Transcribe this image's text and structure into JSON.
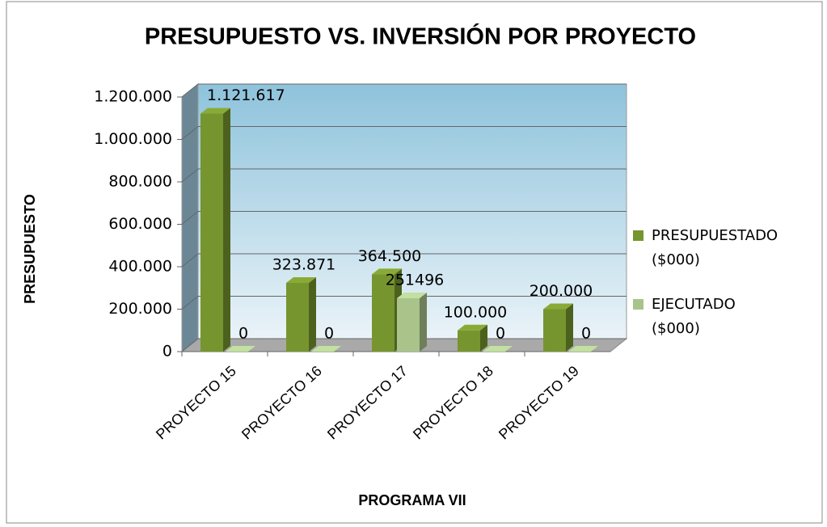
{
  "chart_data": {
    "type": "bar3d",
    "title": "PRESUPUESTO VS. INVERSIÓN  POR PROYECTO",
    "y_label": "PRESUPUESTO",
    "x_label": "PROGRAMA VII",
    "categories": [
      "PROYECTO 15",
      "PROYECTO 16",
      "PROYECTO 17",
      "PROYECTO 18",
      "PROYECTO 19"
    ],
    "series": [
      {
        "name": "PRESUPUESTADO ($000)",
        "color": "#77952e",
        "values": [
          1121617,
          323871,
          364500,
          100000,
          200000
        ],
        "value_labels": [
          "1.121.617",
          "323.871",
          "364.500",
          "100.000",
          "200.000"
        ]
      },
      {
        "name": "EJECUTADO ($000)",
        "color": "#a9c38a",
        "values": [
          0,
          0,
          251496,
          0,
          0
        ]
      }
    ],
    "ylim": [
      0,
      1200000
    ],
    "yticks": [
      0,
      {
        "value": 200000,
        "label": "200.000"
      },
      {
        "value": 400000,
        "label": "400.000"
      },
      {
        "value": 600000,
        "label": "600.000"
      },
      {
        "value": 800000,
        "label": "800.000"
      },
      {
        "value": 1000000,
        "label": "1.000.000"
      },
      {
        "value": 1200000,
        "label": "1.200.000"
      }
    ],
    "grid": true,
    "legend": "right"
  }
}
